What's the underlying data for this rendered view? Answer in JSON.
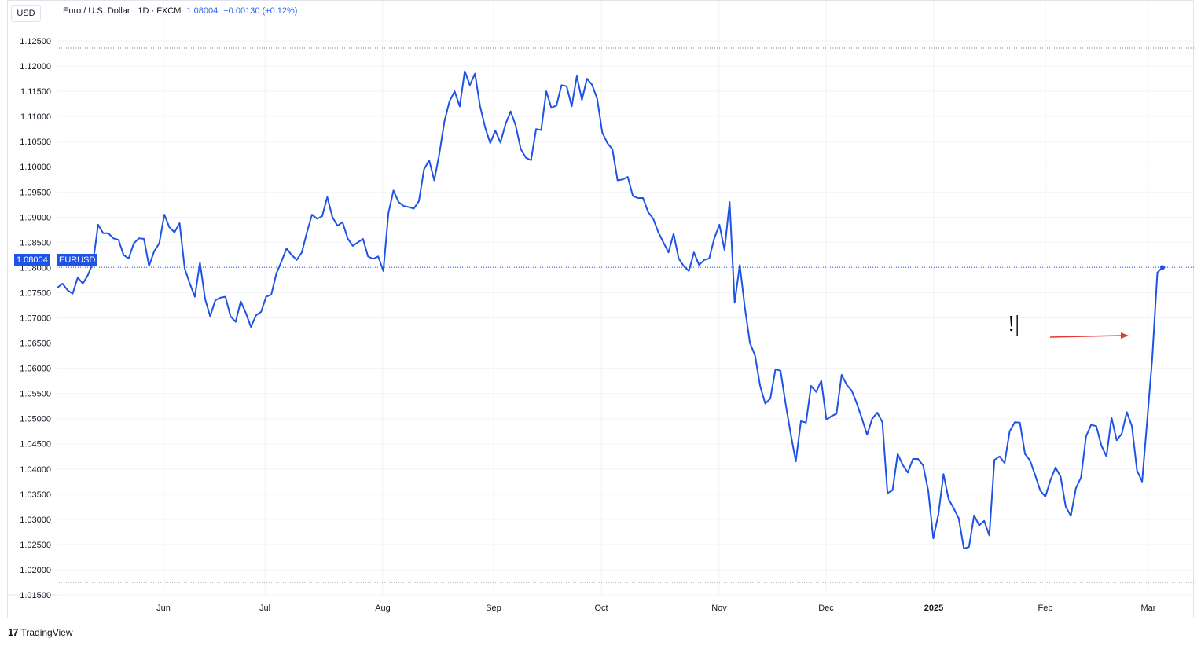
{
  "header": {
    "symbol": "Euro / U.S. Dollar · 1D · FXCM",
    "last": "1.08004",
    "change": "+0.00130 (+0.12%)"
  },
  "currency": "USD",
  "brand": "TradingView",
  "last_label": "1.08004",
  "ticker_label": "EURUSD",
  "annotation": "!|",
  "colors": {
    "line": "#1e53e5",
    "arrow": "#e53935",
    "grid": "#f0f3fa"
  },
  "chart_data": {
    "type": "line",
    "title": "Euro / U.S. Dollar · 1D · FXCM",
    "ylim": [
      1.015,
      1.1275
    ],
    "y_ticks": [
      "1.12500",
      "1.12000",
      "1.11500",
      "1.11000",
      "1.10500",
      "1.10000",
      "1.09500",
      "1.09000",
      "1.08500",
      "1.08000",
      "1.07500",
      "1.07000",
      "1.06500",
      "1.06000",
      "1.05500",
      "1.05000",
      "1.04500",
      "1.04000",
      "1.03500",
      "1.03000",
      "1.02500",
      "1.02000",
      "1.01500"
    ],
    "x_ticks": [
      "Jun",
      "Jul",
      "Aug",
      "Sep",
      "Oct",
      "Nov",
      "Dec",
      "2025",
      "Feb",
      "Mar"
    ],
    "grid": true,
    "series": [
      {
        "values": [
          1.076,
          1.0768,
          1.0755,
          1.0748,
          1.078,
          1.0768,
          1.0785,
          1.081,
          1.0885,
          1.0868,
          1.0868,
          1.0858,
          1.0855,
          1.0825,
          1.0818,
          1.0848,
          1.0858,
          1.0857,
          1.0803,
          1.0832,
          1.0848,
          1.0905,
          1.088,
          1.087,
          1.0888,
          1.0798,
          1.0768,
          1.0742,
          1.081,
          1.0738,
          1.0703,
          1.0735,
          1.074,
          1.0742,
          1.0703,
          1.0692,
          1.0733,
          1.071,
          1.0682,
          1.0705,
          1.0712,
          1.0742,
          1.0746,
          1.0788,
          1.0812,
          1.0838,
          1.0825,
          1.0815,
          1.083,
          1.087,
          1.0905,
          1.0897,
          1.0902,
          1.094,
          1.09,
          1.0883,
          1.089,
          1.0858,
          1.0843,
          1.085,
          1.0857,
          1.0822,
          1.0817,
          1.0822,
          1.0793,
          1.0908,
          1.0953,
          1.093,
          1.0922,
          1.092,
          1.0917,
          1.0932,
          1.0995,
          1.1013,
          1.0973,
          1.1025,
          1.109,
          1.113,
          1.115,
          1.112,
          1.119,
          1.1162,
          1.1185,
          1.112,
          1.1078,
          1.1047,
          1.1072,
          1.1048,
          1.1085,
          1.111,
          1.1082,
          1.1035,
          1.1018,
          1.1013,
          1.1075,
          1.1073,
          1.115,
          1.1117,
          1.1122,
          1.1162,
          1.116,
          1.112,
          1.118,
          1.1133,
          1.1175,
          1.1163,
          1.1135,
          1.1068,
          1.1047,
          1.1035,
          1.0973,
          1.0975,
          1.098,
          1.0942,
          1.0938,
          1.0938,
          1.091,
          1.0897,
          1.087,
          1.085,
          1.083,
          1.0867,
          1.0818,
          1.0803,
          1.0793,
          1.083,
          1.0805,
          1.0815,
          1.0818,
          1.0858,
          1.0885,
          1.0835,
          1.093,
          1.073,
          1.0805,
          1.072,
          1.065,
          1.0625,
          1.0565,
          1.053,
          1.054,
          1.0598,
          1.0595,
          1.053,
          1.047,
          1.0415,
          1.0495,
          1.0492,
          1.0565,
          1.0553,
          1.0575,
          1.0498,
          1.0505,
          1.051,
          1.0587,
          1.0567,
          1.0555,
          1.053,
          1.05,
          1.0468,
          1.05,
          1.0512,
          1.0493,
          1.0352,
          1.0358,
          1.043,
          1.0408,
          1.0393,
          1.042,
          1.042,
          1.0407,
          1.0357,
          1.0262,
          1.031,
          1.039,
          1.034,
          1.0322,
          1.0302,
          1.0242,
          1.0245,
          1.0308,
          1.0288,
          1.0297,
          1.0268,
          1.0418,
          1.0425,
          1.0412,
          1.0475,
          1.0493,
          1.0492,
          1.043,
          1.0417,
          1.0388,
          1.0357,
          1.0345,
          1.0378,
          1.0403,
          1.0385,
          1.0325,
          1.0307,
          1.0362,
          1.0383,
          1.0465,
          1.0488,
          1.0485,
          1.0447,
          1.0425,
          1.0502,
          1.0457,
          1.047,
          1.0513,
          1.0485,
          1.0397,
          1.0375,
          1.0497,
          1.062,
          1.079,
          1.08
        ]
      }
    ]
  }
}
